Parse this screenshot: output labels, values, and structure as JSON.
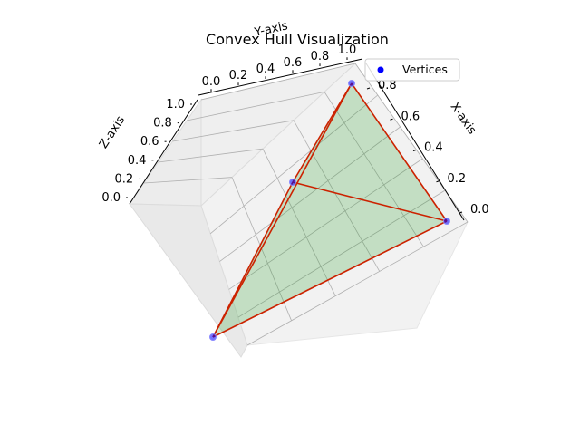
{
  "chart_data": {
    "type": "scatter",
    "title": "Convex Hull Visualization",
    "xlabel": "X-axis",
    "ylabel": "Y-axis",
    "zlabel": "Z-axis",
    "xlim": [
      0,
      1
    ],
    "ylim": [
      0,
      1
    ],
    "zlim": [
      0,
      1
    ],
    "x_ticks": [
      "0.0",
      "0.2",
      "0.4",
      "0.6",
      "0.8"
    ],
    "y_ticks": [
      "0.0",
      "0.2",
      "0.4",
      "0.6",
      "0.8",
      "1.0"
    ],
    "z_ticks": [
      "0.0",
      "0.2",
      "0.4",
      "0.6",
      "0.8",
      "1.0"
    ],
    "grid": true,
    "legend_position": "top-right",
    "series": [
      {
        "name": "Vertices",
        "color": "#0000ff",
        "points": [
          {
            "x": 0,
            "y": 0,
            "z": 0
          },
          {
            "x": 1,
            "y": 0,
            "z": 0
          },
          {
            "x": 0,
            "y": 1,
            "z": 0
          },
          {
            "x": 0,
            "y": 0,
            "z": 1
          }
        ]
      }
    ],
    "hull_edges": [
      [
        0,
        1
      ],
      [
        0,
        2
      ],
      [
        0,
        3
      ],
      [
        1,
        2
      ],
      [
        1,
        3
      ],
      [
        2,
        3
      ]
    ],
    "hull_faces": [
      [
        1,
        2,
        3
      ],
      [
        0,
        1,
        2
      ],
      [
        0,
        1,
        3
      ],
      [
        0,
        2,
        3
      ]
    ],
    "edge_color": "#cc2200",
    "face_color": "#2ca02c"
  }
}
